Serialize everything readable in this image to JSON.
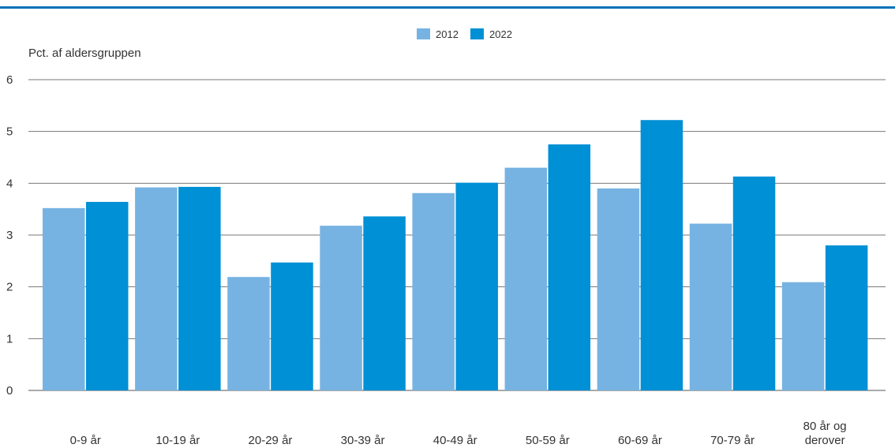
{
  "chart_data": {
    "type": "bar",
    "title": "",
    "ylabel": "Pct. af aldersgruppen",
    "xlabel": "",
    "ylim": [
      0,
      6
    ],
    "yticks": [
      "0",
      "1",
      "2",
      "3",
      "4",
      "5",
      "6"
    ],
    "grid": true,
    "legend_position": "top-center",
    "categories": [
      "0-9 år",
      "10-19 år",
      "20-29 år",
      "30-39 år",
      "40-49 år",
      "50-59 år",
      "60-69 år",
      "70-79 år",
      "80 år og derover"
    ],
    "series": [
      {
        "name": "2012",
        "color": "#76b3e2",
        "values": [
          3.52,
          3.92,
          2.19,
          3.18,
          3.81,
          4.3,
          3.9,
          3.22,
          2.09
        ]
      },
      {
        "name": "2022",
        "color": "#0090d5",
        "values": [
          3.64,
          3.93,
          2.47,
          3.36,
          4.01,
          4.75,
          5.22,
          4.13,
          2.8
        ]
      }
    ]
  }
}
